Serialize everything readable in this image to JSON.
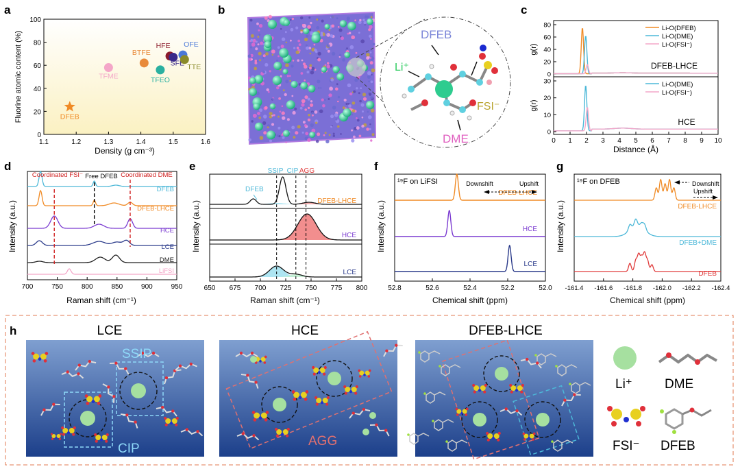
{
  "panels": {
    "a": {
      "letter": "a",
      "xlabel": "Density (g cm⁻³)",
      "ylabel": "Fluorine atomic content (%)"
    },
    "b": {
      "letter": "b",
      "labels": {
        "dfeb": "DFEB",
        "li": "Li⁺",
        "fsi": "FSI⁻",
        "dme": "DME"
      }
    },
    "c": {
      "letter": "c",
      "ylabel": "g(r)",
      "xlabel": "Distance (Å)",
      "top_tag": "DFEB-LHCE",
      "bottom_tag": "HCE"
    },
    "d": {
      "letter": "d",
      "ylabel": "Intensity (a.u.)",
      "xlabel": "Raman shift (cm⁻¹)",
      "coord_fsi": "Coordinated FSI⁻",
      "free_dfeb": "Free DFEB",
      "coord_dme": "Coordinated DME"
    },
    "e": {
      "letter": "e",
      "ylabel": "Intensity (a.u.)",
      "xlabel": "Raman shift (cm⁻¹)",
      "ssip": "SSIP",
      "cip": "CIP",
      "agg": "AGG",
      "dfeb_peak": "DFEB"
    },
    "f": {
      "letter": "f",
      "title": "¹⁹F on LiFSI",
      "ylabel": "Intensity (a.u.)",
      "xlabel": "Chemical shift (ppm)",
      "downshift": "Downshift",
      "upshift": "Upshift"
    },
    "g": {
      "letter": "g",
      "title": "¹⁹F on DFEB",
      "ylabel": "Intensity (a.u.)",
      "xlabel": "Chemical shift (ppm)",
      "downshift": "Downshift",
      "upshift": "Upshift"
    },
    "h": {
      "letter": "h",
      "lce_title": "LCE",
      "hce_title": "HCE",
      "lhce_title": "DFEB-LHCE",
      "ssip": "SSIP",
      "cip": "CIP",
      "agg": "AGG",
      "legend": {
        "li": "Li⁺",
        "dme": "DME",
        "fsi": "FSI⁻",
        "dfeb": "DFEB"
      }
    }
  },
  "chart_data": [
    {
      "type": "scatter",
      "panel": "a",
      "xlabel": "Density (g cm⁻³)",
      "ylabel": "Fluorine atomic content (%)",
      "xlim": [
        1.1,
        1.6
      ],
      "ylim": [
        0,
        100
      ],
      "xticks": [
        "1.1",
        "1.2",
        "1.3",
        "1.4",
        "1.5",
        "1.6"
      ],
      "yticks": [
        "0",
        "20",
        "40",
        "60",
        "80",
        "100"
      ],
      "points": [
        {
          "label": "DFEB",
          "x": 1.18,
          "y": 24,
          "color": "#f08a24",
          "marker": "star"
        },
        {
          "label": "TFME",
          "x": 1.3,
          "y": 58,
          "color": "#f4a6c8"
        },
        {
          "label": "BTFE",
          "x": 1.41,
          "y": 62,
          "color": "#e88a3a"
        },
        {
          "label": "HFE",
          "x": 1.49,
          "y": 68,
          "color": "#8b1a2a"
        },
        {
          "label": "SFE",
          "x": 1.5,
          "y": 67,
          "color": "#3a2a8a"
        },
        {
          "label": "OFE",
          "x": 1.53,
          "y": 69,
          "color": "#4a78d8"
        },
        {
          "label": "TTE",
          "x": 1.535,
          "y": 65,
          "color": "#8a8a2a"
        },
        {
          "label": "TFEO",
          "x": 1.46,
          "y": 56,
          "color": "#2ab0a0"
        }
      ]
    },
    {
      "type": "line",
      "panel": "c",
      "xlabel": "Distance (Å)",
      "ylabel": "g(r)",
      "xlim": [
        0,
        10
      ],
      "xticks": [
        "0",
        "1",
        "2",
        "3",
        "4",
        "5",
        "6",
        "7",
        "8",
        "9",
        "10"
      ],
      "subplots": [
        {
          "name": "DFEB-LHCE",
          "ylim": [
            0,
            80
          ],
          "yticks": [
            "0",
            "20",
            "40",
            "60",
            "80"
          ],
          "series": [
            {
              "name": "Li-O(DFEB)",
              "color": "#f08a24",
              "peaks": [
                {
                  "x": 1.75,
                  "y": 75
                }
              ]
            },
            {
              "name": "Li-O(DME)",
              "color": "#4cb8d8",
              "peaks": [
                {
                  "x": 1.95,
                  "y": 62
                }
              ]
            },
            {
              "name": "Li-O(FSI⁻)",
              "color": "#f4a6c8",
              "peaks": [
                {
                  "x": 2.05,
                  "y": 15
                }
              ]
            }
          ]
        },
        {
          "name": "HCE",
          "ylim": [
            0,
            30
          ],
          "yticks": [
            "0",
            "10",
            "20",
            "30"
          ],
          "series": [
            {
              "name": "Li-O(DME)",
              "color": "#4cb8d8",
              "peaks": [
                {
                  "x": 1.95,
                  "y": 27
                }
              ]
            },
            {
              "name": "Li-O(FSI⁻)",
              "color": "#f4a6c8",
              "peaks": [
                {
                  "x": 2.05,
                  "y": 14
                }
              ]
            }
          ]
        }
      ]
    },
    {
      "type": "line",
      "panel": "d",
      "xlabel": "Raman shift (cm⁻¹)",
      "ylabel": "Intensity (a.u.)",
      "xlim": [
        700,
        950
      ],
      "xticks": [
        "700",
        "750",
        "800",
        "850",
        "900",
        "950"
      ],
      "series": [
        {
          "name": "DFEB",
          "color": "#4cb8d8"
        },
        {
          "name": "DFEB-LHCE",
          "color": "#f08a24"
        },
        {
          "name": "HCE",
          "color": "#7a3ad0"
        },
        {
          "name": "LCE",
          "color": "#2a3a8a"
        },
        {
          "name": "DME",
          "color": "#222222"
        },
        {
          "name": "LiFSI",
          "color": "#f4a6c8"
        }
      ],
      "annotations": {
        "coordinated_fsi": 745,
        "free_dfeb": 812,
        "coordinated_dme": 872
      }
    },
    {
      "type": "area",
      "panel": "e",
      "xlabel": "Raman shift (cm⁻¹)",
      "ylabel": "Intensity (a.u.)",
      "xlim": [
        650,
        800
      ],
      "xticks": [
        "650",
        "675",
        "700",
        "725",
        "750",
        "775",
        "800"
      ],
      "series": [
        {
          "name": "DFEB-LHCE",
          "color": "#f08a24"
        },
        {
          "name": "HCE",
          "color": "#7a3ad0"
        },
        {
          "name": "LCE",
          "color": "#2a3a8a"
        }
      ],
      "regions": {
        "ssip": [
          716
        ],
        "cip": [
          735
        ],
        "agg": [
          745
        ]
      }
    },
    {
      "type": "line",
      "panel": "f",
      "xlabel": "Chemical shift (ppm)",
      "ylabel": "Intensity (a.u.)",
      "xlim": [
        52.8,
        52.0
      ],
      "xticks": [
        "52.8",
        "52.6",
        "52.4",
        "52.2",
        "52.0"
      ],
      "series": [
        {
          "name": "DFEB-LHCE",
          "color": "#f08a24",
          "peak": 52.47
        },
        {
          "name": "HCE",
          "color": "#7a3ad0",
          "peak": 52.51
        },
        {
          "name": "LCE",
          "color": "#2a3a8a",
          "peak": 52.19
        }
      ]
    },
    {
      "type": "line",
      "panel": "g",
      "xlabel": "Chemical shift (ppm)",
      "ylabel": "Intensity (a.u.)",
      "xlim": [
        -161.4,
        -162.4
      ],
      "xticks": [
        "-161.4",
        "-161.6",
        "-161.8",
        "-162.0",
        "-162.2",
        "-162.4"
      ],
      "series": [
        {
          "name": "DFEB-LHCE",
          "color": "#f08a24",
          "peak": -162.0
        },
        {
          "name": "DFEB+DME",
          "color": "#4cb8d8",
          "peak": -161.82
        },
        {
          "name": "DFEB",
          "color": "#e03a3a",
          "peak": -161.86
        }
      ]
    }
  ]
}
